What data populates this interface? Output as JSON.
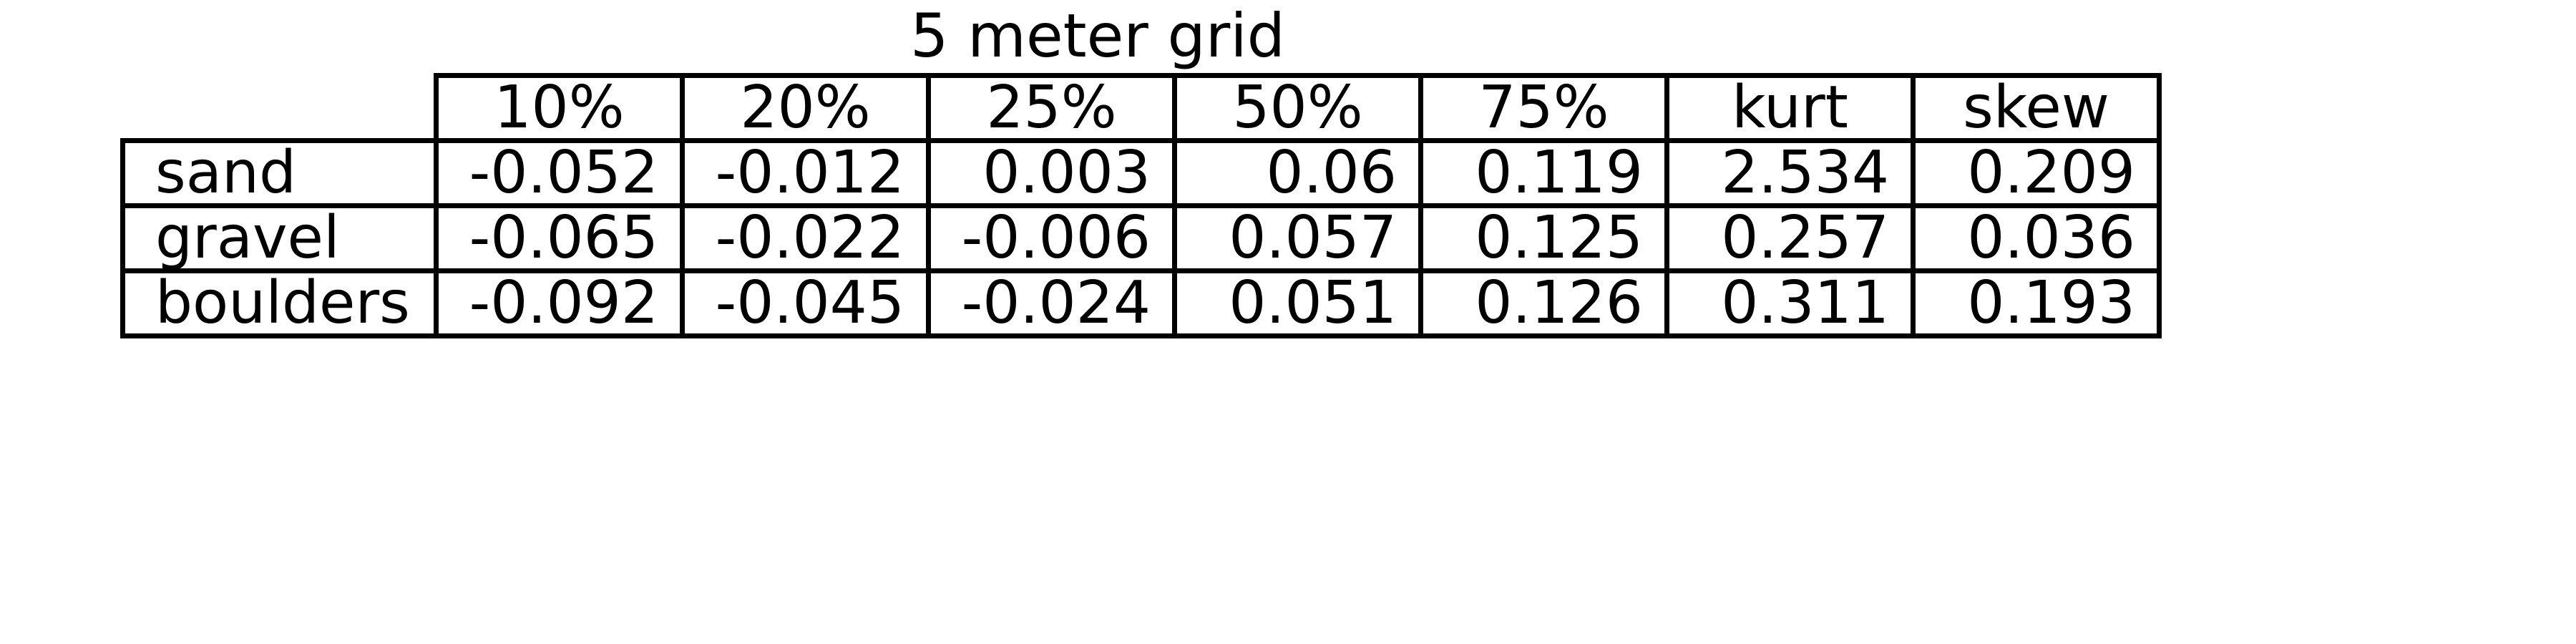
{
  "chart_data": {
    "type": "table",
    "title": "5 meter grid",
    "columns": [
      "10%",
      "20%",
      "25%",
      "50%",
      "75%",
      "kurt",
      "skew"
    ],
    "rows": [
      {
        "label": "sand",
        "values": [
          "-0.052",
          "-0.012",
          "0.003",
          "0.06",
          "0.119",
          "2.534",
          "0.209"
        ]
      },
      {
        "label": "gravel",
        "values": [
          "-0.065",
          "-0.022",
          "-0.006",
          "0.057",
          "0.125",
          "0.257",
          "0.036"
        ]
      },
      {
        "label": "boulders",
        "values": [
          "-0.092",
          "-0.045",
          "-0.024",
          "0.051",
          "0.126",
          "0.311",
          "0.193"
        ]
      }
    ]
  }
}
